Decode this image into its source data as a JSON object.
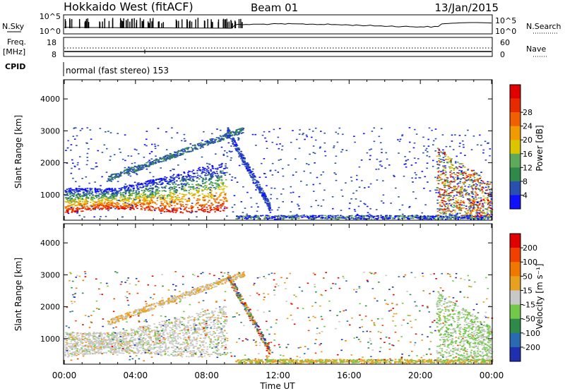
{
  "header": {
    "title": "Hokkaido West (fitACF)",
    "beam": "Beam 01",
    "date": "13/Jan/2015"
  },
  "noise_panel": {
    "left_label": "N.Sky",
    "right_label": "N.Search",
    "left_ticks": [
      "10^5",
      "10^0"
    ],
    "right_ticks": [
      "10^5",
      "10^0"
    ]
  },
  "freq_panel": {
    "label_line1": "Freq.",
    "label_line2": "[MHz]",
    "left_ticks": [
      "18",
      "8"
    ],
    "right_ticks": [
      "60",
      "0"
    ],
    "right_label": "Nave"
  },
  "cpid_panel": {
    "label": "CPID",
    "text": "normal (fast stereo) 153"
  },
  "chart_data": [
    {
      "type": "heatmap",
      "name": "power",
      "ylabel": "Slant Range [km]",
      "ylim": [
        200,
        4600
      ],
      "y_ticks": [
        1000,
        2000,
        3000,
        4000
      ],
      "x_ticks": [
        "00:00",
        "04:00",
        "08:00",
        "12:00",
        "16:00",
        "20:00",
        "00:00"
      ],
      "colorbar": {
        "label": "Power [dB]",
        "ticks": [
          "4",
          "8",
          "12",
          "16",
          "20",
          "24",
          "28"
        ],
        "colors": [
          "#1010ff",
          "#2a4fb0",
          "#2f8a4a",
          "#5fa95a",
          "#dcc400",
          "#f39a00",
          "#f06000",
          "#e82a00",
          "#e00000"
        ]
      }
    },
    {
      "type": "heatmap",
      "name": "velocity",
      "ylabel": "Slant Range [km]",
      "ylim": [
        200,
        4600
      ],
      "y_ticks": [
        1000,
        2000,
        3000,
        4000
      ],
      "x_ticks": [
        "00:00",
        "04:00",
        "08:00",
        "12:00",
        "16:00",
        "20:00",
        "00:00"
      ],
      "xlabel": "Time UT",
      "colorbar": {
        "label": "Velocity [m s⁻¹]",
        "ticks": [
          "200",
          "100",
          "50",
          "15",
          "-15",
          "-50",
          "-100",
          "-200"
        ],
        "colors": [
          "#1f2fb0",
          "#2a6ab0",
          "#2f8a4a",
          "#73c84a",
          "#c8c8c8",
          "#e8a020",
          "#f07800",
          "#f04000",
          "#e00000"
        ]
      }
    }
  ]
}
